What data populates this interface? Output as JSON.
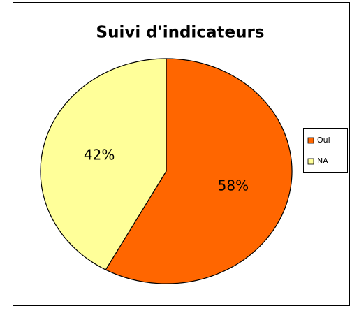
{
  "chart_data": {
    "type": "pie",
    "title": "Suivi d'indicateurs",
    "categories": [
      "Oui",
      "NA"
    ],
    "values": [
      58,
      42
    ],
    "value_labels": [
      "58%",
      "42%"
    ],
    "colors": [
      "#ff6600",
      "#ffff99"
    ],
    "legend": "right"
  }
}
